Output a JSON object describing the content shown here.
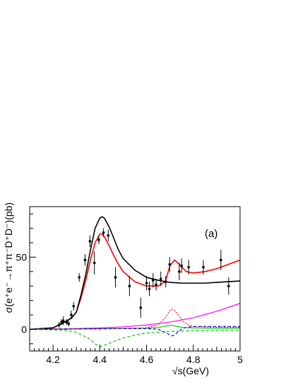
{
  "chart_data": {
    "type": "line",
    "panel_label": "(a)",
    "xlabel": "√s(GeV)",
    "ylabel": "σ(e⁺e⁻→π⁺π⁻D⁺D⁻)(pb)",
    "xlim": [
      4.1,
      5.0
    ],
    "ylim": [
      -15,
      85
    ],
    "x_ticks": [
      4.2,
      4.4,
      4.6,
      4.8,
      5.0
    ],
    "x_tick_labels": [
      "4.2",
      "4.4",
      "4.6",
      "4.8",
      "5"
    ],
    "y_ticks": [
      0,
      50
    ],
    "y_tick_labels": [
      "0",
      "50"
    ],
    "grid": false,
    "data_points": {
      "x": [
        4.226,
        4.236,
        4.244,
        4.258,
        4.267,
        4.278,
        4.288,
        4.312,
        4.337,
        4.358,
        4.377,
        4.396,
        4.416,
        4.436,
        4.467,
        4.527,
        4.575,
        4.6,
        4.612,
        4.628,
        4.641,
        4.661,
        4.682,
        4.699,
        4.74,
        4.75,
        4.78,
        4.843,
        4.918,
        4.951
      ],
      "y": [
        3,
        5,
        6,
        5,
        4,
        10,
        16,
        36,
        48,
        61,
        46,
        62,
        67,
        65,
        36,
        30,
        15,
        32,
        28,
        34,
        31,
        35,
        33,
        45,
        40,
        44,
        43,
        43,
        48,
        30
      ],
      "yerr": [
        2,
        2,
        3,
        2,
        2,
        3,
        3,
        3,
        4,
        4,
        8,
        3,
        3,
        4,
        7,
        7,
        7,
        5,
        5,
        5,
        4,
        5,
        4,
        5,
        6,
        5,
        5,
        5,
        7,
        6
      ]
    },
    "series": [
      {
        "color": "#ff0000",
        "style": "solid",
        "x": [
          4.1,
          4.2,
          4.25,
          4.28,
          4.3,
          4.32,
          4.34,
          4.36,
          4.38,
          4.4,
          4.41,
          4.42,
          4.44,
          4.46,
          4.48,
          4.5,
          4.55,
          4.6,
          4.65,
          4.68,
          4.7,
          4.72,
          4.74,
          4.77,
          4.8,
          4.85,
          4.9,
          4.95,
          5.0
        ],
        "y": [
          0,
          1,
          5,
          8,
          12,
          22,
          34,
          48,
          60,
          66,
          66,
          64,
          58,
          51,
          45,
          40,
          33,
          30,
          30,
          33,
          44,
          48,
          45,
          40,
          39,
          40,
          42,
          45,
          48
        ]
      },
      {
        "color": "#000000",
        "style": "solid",
        "x": [
          4.1,
          4.2,
          4.25,
          4.28,
          4.3,
          4.32,
          4.34,
          4.36,
          4.38,
          4.4,
          4.41,
          4.42,
          4.44,
          4.46,
          4.48,
          4.5,
          4.55,
          4.6,
          4.65,
          4.7,
          4.75,
          4.8,
          4.85,
          4.9,
          4.95,
          5.0
        ],
        "y": [
          0,
          1,
          5,
          8,
          12,
          24,
          38,
          55,
          70,
          77,
          78,
          77,
          71,
          63,
          55,
          49,
          41,
          36,
          34,
          32.5,
          32,
          32,
          32,
          32.5,
          33,
          33.5
        ]
      },
      {
        "color": "#ff00ff",
        "style": "solid",
        "x": [
          4.1,
          4.2,
          4.3,
          4.4,
          4.5,
          4.6,
          4.7,
          4.8,
          4.9,
          5.0
        ],
        "y": [
          0,
          0.2,
          0.5,
          1,
          1.7,
          3,
          5,
          8,
          12.5,
          18
        ]
      },
      {
        "color": "#00cc00",
        "style": "solid",
        "x": [
          4.1,
          4.3,
          4.5,
          4.6,
          4.65,
          4.69,
          4.71,
          4.73,
          4.76,
          4.8,
          4.9,
          5.0
        ],
        "y": [
          0,
          0.3,
          0.6,
          0.8,
          1.2,
          2.5,
          2.8,
          2,
          1.2,
          1,
          0.8,
          0.8
        ]
      },
      {
        "color": "#00cc00",
        "style": "dashed",
        "x": [
          4.1,
          4.25,
          4.3,
          4.35,
          4.38,
          4.4,
          4.42,
          4.45,
          4.5,
          4.55,
          4.6,
          4.7,
          4.8,
          4.9,
          5.0
        ],
        "y": [
          0,
          -0.5,
          -2,
          -6,
          -10,
          -12,
          -11,
          -9,
          -6,
          -4,
          -2.5,
          -1.5,
          -1,
          -0.8,
          -0.6
        ]
      },
      {
        "color": "#ff0000",
        "style": "dotted",
        "x": [
          4.1,
          4.5,
          4.6,
          4.65,
          4.68,
          4.7,
          4.71,
          4.72,
          4.74,
          4.76,
          4.78,
          4.8,
          4.9,
          5.0
        ],
        "y": [
          0,
          0.5,
          1,
          3,
          8,
          13,
          14,
          13,
          9,
          5,
          3,
          2,
          1.5,
          1.5
        ]
      },
      {
        "color": "#0000ff",
        "style": "dashed",
        "x": [
          4.1,
          4.5,
          4.6,
          4.65,
          4.68,
          4.7,
          4.71,
          4.72,
          4.74,
          4.76,
          4.8,
          4.9,
          5.0
        ],
        "y": [
          0,
          0.5,
          0.5,
          0,
          -2,
          -4,
          -4.5,
          -4,
          -1,
          1,
          2,
          2,
          2
        ]
      }
    ]
  }
}
